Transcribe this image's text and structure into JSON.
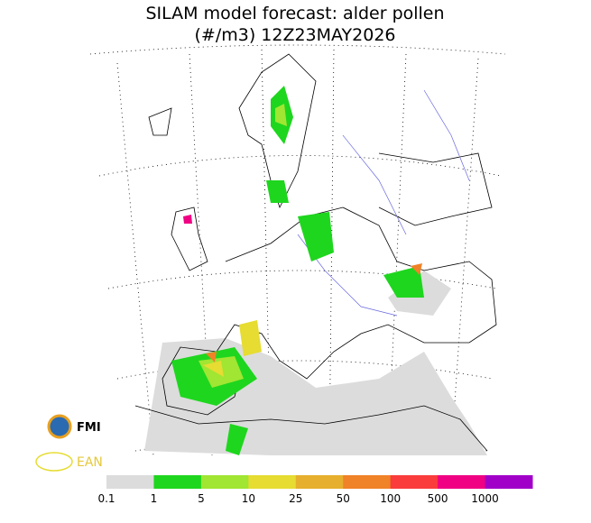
{
  "header": {
    "title": "SILAM model forecast: alder pollen",
    "subtitle": "(#/m3) 12Z23MAY2026"
  },
  "logos": {
    "fmi": "FMI",
    "ean": "EAN"
  },
  "legend": {
    "levels": [
      0.1,
      1,
      5,
      10,
      25,
      50,
      100,
      500,
      1000
    ],
    "colors": [
      "#dcdcdc",
      "#1ed61e",
      "#a0e632",
      "#e6dc32",
      "#e6af2d",
      "#f08228",
      "#fa3c3c",
      "#f00082",
      "#a000c8"
    ]
  }
}
